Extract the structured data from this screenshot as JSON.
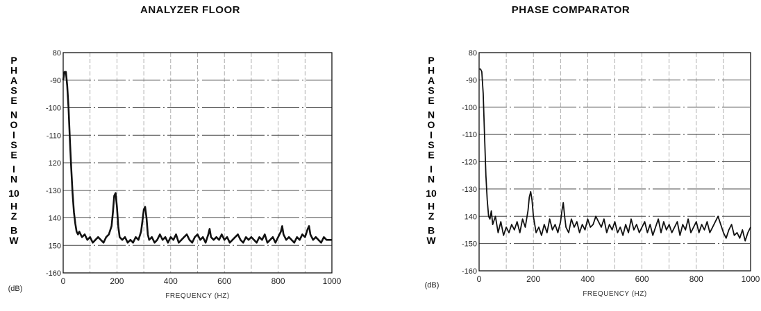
{
  "chart_data": [
    {
      "type": "line",
      "title": "ANALYZER FLOOR",
      "ylabel": "PHASE NOISE IN 10 HZ BW",
      "yunit": "(dB)",
      "xlabel": "FREQUENCY (HZ)",
      "xlim": [
        0,
        1000
      ],
      "ylim": [
        -160,
        -80
      ],
      "xticks": [
        0,
        200,
        400,
        600,
        800,
        1000
      ],
      "yticks": [
        {
          "value": -80,
          "label": "80"
        },
        {
          "value": -90,
          "label": "-90"
        },
        {
          "value": -100,
          "label": "-100"
        },
        {
          "value": -110,
          "label": "-110"
        },
        {
          "value": -120,
          "label": "120"
        },
        {
          "value": -130,
          "label": "-130"
        },
        {
          "value": -140,
          "label": "140"
        },
        {
          "value": -150,
          "label": "150"
        },
        {
          "value": -160,
          "label": "-160"
        }
      ],
      "grid": true,
      "series": [
        {
          "x": [
            0,
            5,
            10,
            15,
            20,
            25,
            30,
            35,
            40,
            45,
            50,
            55,
            60,
            70,
            80,
            90,
            100,
            110,
            120,
            130,
            140,
            150,
            160,
            170,
            180,
            185,
            190,
            195,
            200,
            205,
            210,
            220,
            230,
            240,
            250,
            260,
            270,
            280,
            290,
            295,
            300,
            305,
            310,
            315,
            320,
            330,
            340,
            350,
            360,
            370,
            380,
            390,
            400,
            410,
            420,
            430,
            440,
            450,
            460,
            470,
            480,
            490,
            500,
            510,
            520,
            530,
            540,
            545,
            550,
            560,
            570,
            580,
            590,
            600,
            610,
            620,
            630,
            640,
            650,
            660,
            670,
            680,
            690,
            700,
            710,
            720,
            730,
            740,
            750,
            760,
            770,
            780,
            790,
            800,
            810,
            815,
            820,
            830,
            840,
            850,
            860,
            870,
            880,
            890,
            900,
            910,
            915,
            920,
            930,
            940,
            950,
            960,
            970,
            980,
            990,
            1000
          ],
          "y": [
            -90,
            -87,
            -87,
            -92,
            -100,
            -112,
            -122,
            -131,
            -138,
            -142,
            -145,
            -146,
            -145,
            -147,
            -146,
            -148,
            -147,
            -149,
            -148,
            -147,
            -148,
            -149,
            -147,
            -146,
            -143,
            -138,
            -132,
            -131,
            -136,
            -143,
            -147,
            -148,
            -147,
            -149,
            -148,
            -149,
            -147,
            -148,
            -145,
            -141,
            -137,
            -136,
            -140,
            -146,
            -148,
            -147,
            -149,
            -148,
            -146,
            -148,
            -147,
            -149,
            -147,
            -148,
            -146,
            -149,
            -148,
            -147,
            -146,
            -148,
            -149,
            -147,
            -146,
            -148,
            -147,
            -149,
            -146,
            -144,
            -147,
            -148,
            -147,
            -148,
            -146,
            -148,
            -147,
            -149,
            -148,
            -147,
            -146,
            -148,
            -149,
            -147,
            -148,
            -147,
            -148,
            -149,
            -147,
            -148,
            -146,
            -149,
            -148,
            -147,
            -149,
            -147,
            -145,
            -143,
            -146,
            -148,
            -147,
            -148,
            -149,
            -147,
            -148,
            -146,
            -147,
            -144,
            -143,
            -146,
            -148,
            -147,
            -148,
            -149,
            -147,
            -148,
            -148,
            -148
          ]
        }
      ]
    },
    {
      "type": "line",
      "title": "PHASE COMPARATOR",
      "ylabel": "PHASE NOISE IN 10 HZ BW",
      "yunit": "(dB)",
      "xlabel": "FREQUENCY (HZ)",
      "xlim": [
        0,
        1000
      ],
      "ylim": [
        -160,
        -80
      ],
      "xticks": [
        0,
        200,
        400,
        600,
        800,
        1000
      ],
      "yticks": [
        {
          "value": -80,
          "label": "80"
        },
        {
          "value": -90,
          "label": "-90"
        },
        {
          "value": -100,
          "label": "-100"
        },
        {
          "value": -110,
          "label": "-110"
        },
        {
          "value": -120,
          "label": "-120"
        },
        {
          "value": -130,
          "label": "-130"
        },
        {
          "value": -140,
          "label": "140"
        },
        {
          "value": -150,
          "label": "-150"
        },
        {
          "value": -160,
          "label": "-160"
        }
      ],
      "grid": true,
      "series": [
        {
          "x": [
            0,
            5,
            10,
            15,
            20,
            25,
            30,
            35,
            40,
            45,
            50,
            60,
            70,
            80,
            90,
            100,
            110,
            120,
            130,
            140,
            150,
            160,
            170,
            180,
            185,
            190,
            195,
            200,
            210,
            220,
            230,
            240,
            250,
            260,
            270,
            280,
            290,
            300,
            305,
            310,
            315,
            320,
            330,
            340,
            350,
            360,
            370,
            380,
            390,
            400,
            410,
            420,
            430,
            440,
            450,
            460,
            470,
            480,
            490,
            500,
            510,
            520,
            530,
            540,
            550,
            560,
            570,
            580,
            590,
            600,
            610,
            620,
            630,
            640,
            650,
            660,
            670,
            680,
            690,
            700,
            710,
            720,
            730,
            740,
            750,
            760,
            770,
            780,
            790,
            800,
            810,
            820,
            830,
            840,
            850,
            860,
            870,
            880,
            890,
            900,
            910,
            920,
            930,
            940,
            950,
            960,
            970,
            980,
            990,
            1000
          ],
          "y": [
            -86,
            -86,
            -87,
            -95,
            -110,
            -125,
            -134,
            -140,
            -141,
            -138,
            -143,
            -140,
            -146,
            -142,
            -147,
            -144,
            -146,
            -143,
            -145,
            -142,
            -146,
            -141,
            -144,
            -138,
            -133,
            -131,
            -134,
            -140,
            -146,
            -144,
            -147,
            -143,
            -146,
            -141,
            -145,
            -143,
            -146,
            -142,
            -138,
            -135,
            -140,
            -144,
            -146,
            -141,
            -144,
            -142,
            -146,
            -143,
            -145,
            -141,
            -144,
            -143,
            -140,
            -142,
            -144,
            -141,
            -146,
            -143,
            -145,
            -142,
            -146,
            -144,
            -147,
            -143,
            -146,
            -141,
            -145,
            -143,
            -146,
            -144,
            -142,
            -146,
            -143,
            -147,
            -144,
            -141,
            -146,
            -142,
            -145,
            -143,
            -146,
            -144,
            -142,
            -147,
            -143,
            -145,
            -141,
            -146,
            -144,
            -142,
            -146,
            -143,
            -145,
            -142,
            -146,
            -144,
            -142,
            -140,
            -143,
            -146,
            -148,
            -145,
            -143,
            -147,
            -146,
            -148,
            -145,
            -149,
            -146,
            -144
          ]
        }
      ]
    }
  ]
}
